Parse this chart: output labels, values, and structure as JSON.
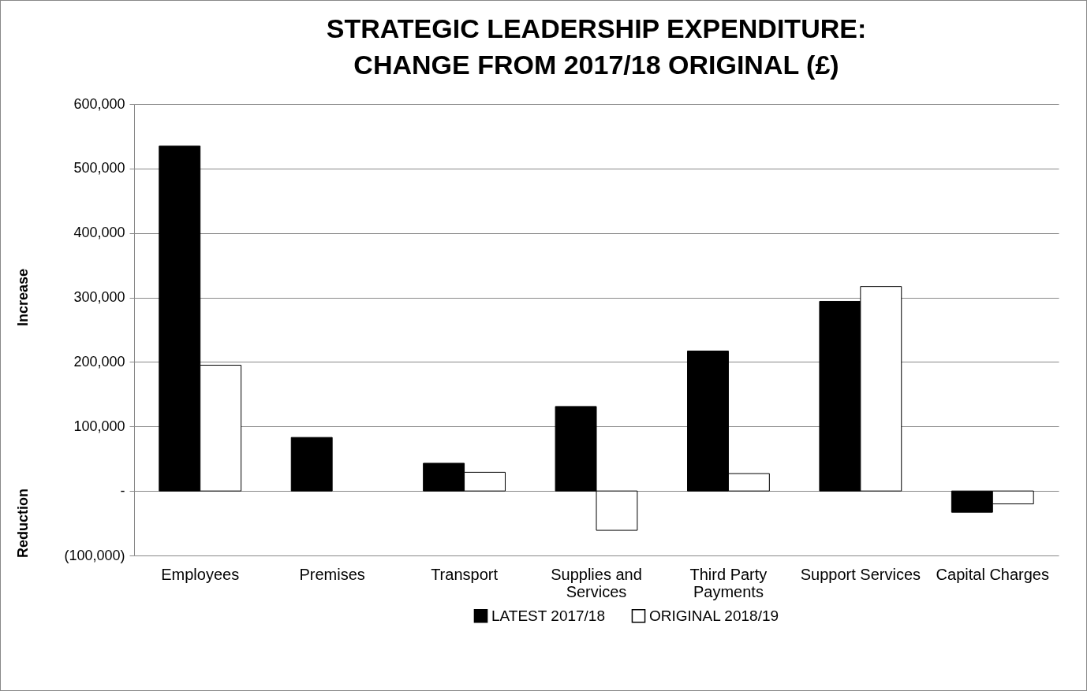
{
  "chart_data": {
    "type": "bar",
    "title": [
      "STRATEGIC LEADERSHIP EXPENDITURE:",
      "CHANGE FROM 2017/18 ORIGINAL (£)"
    ],
    "ylabel": "Increase",
    "annotations": [
      "Reduction"
    ],
    "categories": [
      "Employees",
      "Premises",
      "Transport",
      "Supplies and Services",
      "Third Party Payments",
      "Support Services",
      "Capital Charges"
    ],
    "series": [
      {
        "name": "LATEST 2017/18",
        "color": "#000000",
        "values": [
          535000,
          83000,
          43000,
          131000,
          217000,
          294000,
          -33000
        ]
      },
      {
        "name": "ORIGINAL 2018/19",
        "color": "#ffffff",
        "values": [
          195000,
          null,
          29000,
          -61000,
          27000,
          317000,
          -20000
        ]
      }
    ],
    "ylim": [
      -100000,
      600000
    ],
    "yticks": [
      {
        "value": -100000,
        "label": "(100,000)"
      },
      {
        "value": 0,
        "label": "-"
      },
      {
        "value": 100000,
        "label": "100,000"
      },
      {
        "value": 200000,
        "label": "200,000"
      },
      {
        "value": 300000,
        "label": "300,000"
      },
      {
        "value": 400000,
        "label": "400,000"
      },
      {
        "value": 500000,
        "label": "500,000"
      },
      {
        "value": 600000,
        "label": "600,000"
      }
    ],
    "grid": "y",
    "legend": "bottom"
  }
}
